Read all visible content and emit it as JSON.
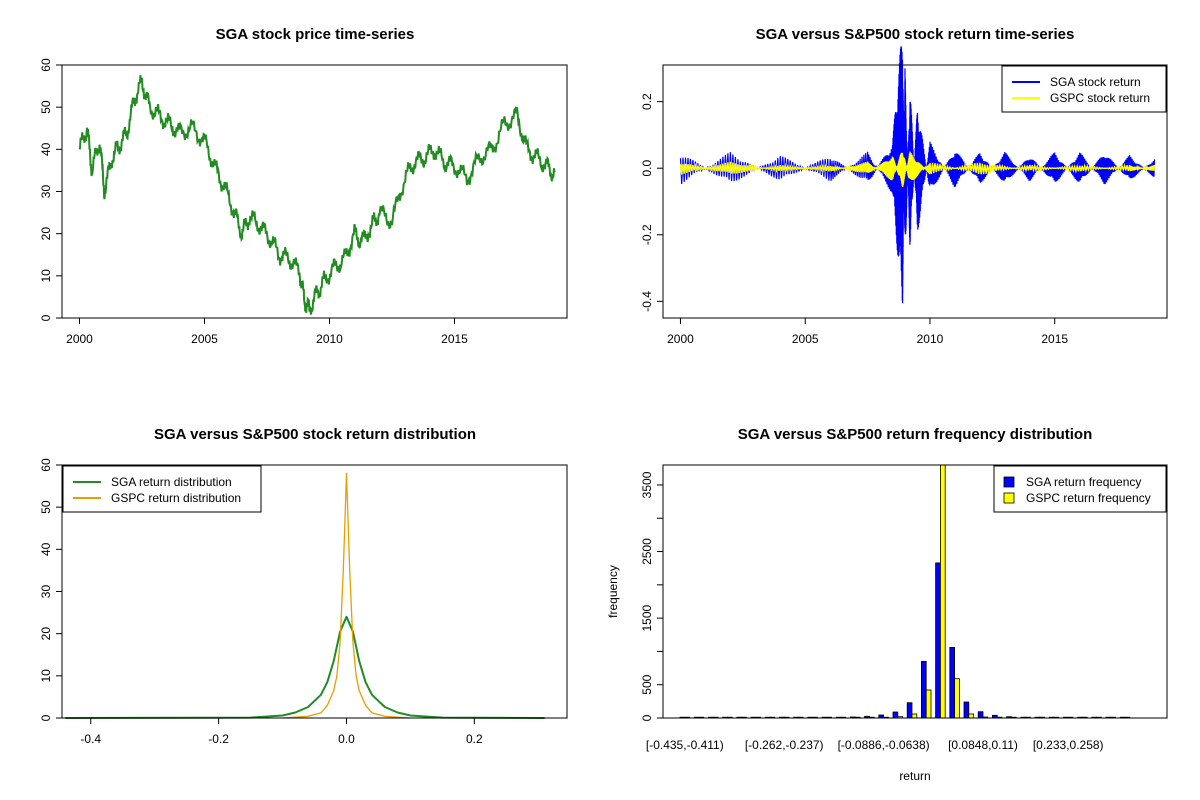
{
  "chart_data": [
    {
      "type": "line",
      "title": "SGA stock price time-series",
      "xlabel": "",
      "ylabel": "",
      "xlim": [
        1999.3,
        2019.5
      ],
      "ylim": [
        0,
        60
      ],
      "x_ticks": [
        "2000",
        "2005",
        "2010",
        "2015"
      ],
      "y_ticks": [
        "0",
        "10",
        "20",
        "30",
        "40",
        "50",
        "60"
      ],
      "series": [
        {
          "name": "SGA stock price",
          "color": "#228b22",
          "x": [
            2000.0,
            2000.3,
            2000.5,
            2000.8,
            2001.0,
            2001.3,
            2001.6,
            2001.9,
            2002.2,
            2002.5,
            2002.8,
            2003.2,
            2003.6,
            2004.0,
            2004.5,
            2005.0,
            2005.4,
            2005.8,
            2006.2,
            2006.5,
            2006.8,
            2007.2,
            2007.6,
            2008.0,
            2008.4,
            2008.8,
            2009.0,
            2009.2,
            2009.5,
            2009.8,
            2010.2,
            2010.6,
            2011.0,
            2011.3,
            2011.7,
            2012.0,
            2012.5,
            2013.0,
            2013.4,
            2013.8,
            2014.2,
            2014.6,
            2015.0,
            2015.5,
            2016.0,
            2016.5,
            2017.0,
            2017.5,
            2017.9,
            2018.3,
            2018.7,
            2019.0
          ],
          "values": [
            40,
            45,
            35,
            42,
            30,
            38,
            41,
            44,
            52,
            56,
            50,
            48,
            46,
            44,
            45,
            42,
            36,
            31,
            25,
            20,
            24,
            22,
            19,
            15,
            14,
            11,
            4,
            2,
            6,
            9,
            12,
            14,
            20,
            18,
            22,
            25,
            23,
            33,
            37,
            38,
            40,
            37,
            36,
            33,
            38,
            40,
            46,
            48,
            40,
            38,
            36,
            34
          ]
        }
      ]
    },
    {
      "type": "line",
      "title": "SGA versus S&P500 stock return time-series",
      "xlabel": "",
      "ylabel": "",
      "xlim": [
        1999.3,
        2019.5
      ],
      "ylim": [
        -0.45,
        0.31
      ],
      "x_ticks": [
        "2000",
        "2005",
        "2010",
        "2015"
      ],
      "y_ticks": [
        "-0.4",
        "-0.2",
        "0.0",
        "0.2"
      ],
      "legend": "top-right",
      "series": [
        {
          "name": "SGA stock return",
          "color": "#0000ff",
          "x": [
            2000,
            2002,
            2004,
            2006,
            2007.5,
            2008.5,
            2008.9,
            2009.0,
            2009.2,
            2009.5,
            2010,
            2011,
            2012,
            2013,
            2014,
            2015,
            2016,
            2017,
            2018,
            2019
          ],
          "values": [
            0.05,
            -0.05,
            0.04,
            -0.04,
            0.05,
            -0.08,
            -0.43,
            0.3,
            -0.25,
            0.2,
            -0.08,
            0.06,
            -0.05,
            0.05,
            -0.04,
            0.05,
            -0.05,
            0.05,
            -0.04,
            0.03
          ]
        },
        {
          "name": "GSPC stock return",
          "color": "#ffff00",
          "x": [
            2000,
            2002,
            2004,
            2006,
            2007.5,
            2008.5,
            2008.9,
            2009.2,
            2010,
            2012,
            2014,
            2016,
            2018,
            2019
          ],
          "values": [
            0.02,
            -0.02,
            0.01,
            -0.01,
            0.02,
            -0.04,
            0.06,
            -0.05,
            0.02,
            -0.02,
            0.01,
            -0.01,
            0.01,
            -0.01
          ]
        }
      ]
    },
    {
      "type": "line",
      "title": "SGA versus S&P500 stock return distribution",
      "xlabel": "",
      "ylabel": "",
      "xlim": [
        -0.445,
        0.345
      ],
      "ylim": [
        0,
        60
      ],
      "x_ticks": [
        "-0.4",
        "-0.2",
        "0.0",
        "0.2"
      ],
      "y_ticks": [
        "0",
        "10",
        "20",
        "30",
        "40",
        "50",
        "60"
      ],
      "legend": "top-left",
      "series": [
        {
          "name": "SGA return distribution",
          "color": "#228b22",
          "x": [
            -0.44,
            -0.15,
            -0.1,
            -0.08,
            -0.06,
            -0.04,
            -0.03,
            -0.02,
            -0.01,
            0.0,
            0.01,
            0.02,
            0.03,
            0.04,
            0.06,
            0.08,
            0.1,
            0.15,
            0.31
          ],
          "values": [
            0,
            0.1,
            0.6,
            1.3,
            2.6,
            5.5,
            8.5,
            13.5,
            20.5,
            24,
            20.5,
            13.5,
            8.5,
            5.5,
            2.6,
            1.3,
            0.6,
            0.1,
            0
          ]
        },
        {
          "name": "GSPC return distribution",
          "color": "#e69f00",
          "x": [
            -0.1,
            -0.06,
            -0.04,
            -0.03,
            -0.02,
            -0.015,
            -0.01,
            -0.005,
            0.0,
            0.005,
            0.01,
            0.015,
            0.02,
            0.03,
            0.04,
            0.06,
            0.1
          ],
          "values": [
            0,
            0.4,
            1.2,
            3,
            6.5,
            10,
            18,
            35,
            58,
            35,
            18,
            10,
            6.5,
            3,
            1.2,
            0.4,
            0
          ]
        }
      ]
    },
    {
      "type": "bar",
      "title": "SGA versus S&P500 return frequency distribution",
      "xlabel": "return",
      "ylabel": "frequency",
      "ylim": [
        0,
        3800
      ],
      "y_ticks": [
        "0",
        "500",
        "1500",
        "2500",
        "3500"
      ],
      "x_tick_labels": [
        "[-0.435,-0.411)",
        "[-0.262,-0.237)",
        "[-0.0886,-0.0638)",
        "[0.0848,0.11)",
        "[0.233,0.258)"
      ],
      "x_tick_bins": [
        0,
        7,
        14,
        21,
        27
      ],
      "legend": "top-right",
      "series": [
        {
          "name": "SGA return frequency",
          "color": "#0000ff",
          "values": [
            1,
            1,
            1,
            1,
            1,
            1,
            1,
            1,
            2,
            3,
            5,
            8,
            15,
            25,
            45,
            90,
            230,
            850,
            2330,
            1060,
            240,
            95,
            40,
            20,
            10,
            6,
            4,
            2,
            2,
            1,
            1,
            1
          ]
        },
        {
          "name": "GSPC return frequency",
          "color": "#ffff00",
          "values": [
            0,
            0,
            0,
            0,
            0,
            0,
            0,
            0,
            0,
            0,
            0,
            0,
            2,
            5,
            10,
            20,
            60,
            420,
            3800,
            590,
            60,
            15,
            5,
            2,
            0,
            0,
            0,
            0,
            0,
            0,
            0,
            0
          ]
        }
      ]
    }
  ]
}
